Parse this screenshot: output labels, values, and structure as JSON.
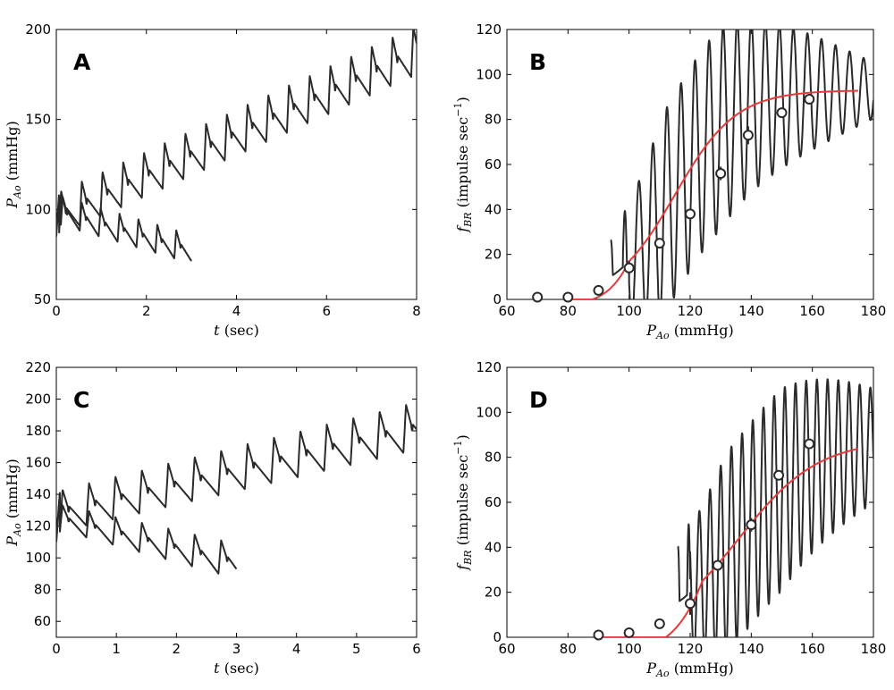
{
  "figure": {
    "stroke_color": "#2a2a2a",
    "fit_color": "#e83a3a",
    "marker_fill": "#ffffff"
  },
  "chart_data": [
    {
      "id": "A",
      "type": "line",
      "panel_label": "A",
      "xlim": [
        0,
        8
      ],
      "ylim": [
        50,
        200
      ],
      "xticks": [
        0,
        2,
        4,
        6,
        8
      ],
      "yticks": [
        50,
        100,
        150,
        200
      ],
      "xlabel": {
        "sym": "t",
        "unit": " (sec)"
      },
      "ylabel": {
        "sym": "P",
        "sub": "Ao",
        "unit": " (mmHg)"
      },
      "series": [
        {
          "name": "rising pressure",
          "type": "pulsatile",
          "t0": 0,
          "t1": 8,
          "period": 0.46,
          "base0": 85,
          "base1": 175,
          "amp0": 24,
          "amp1": 27,
          "firstBase": 85,
          "firstAmp": 24,
          "phase": 0.06
        },
        {
          "name": "falling pressure",
          "type": "pulsatile",
          "t0": 0,
          "t1": 3,
          "period": 0.42,
          "base0": 92,
          "base1": 70,
          "amp0": 16,
          "amp1": 16,
          "firstBase": 92,
          "firstAmp": 16,
          "phase": 0.1
        }
      ]
    },
    {
      "id": "B",
      "type": "line",
      "panel_label": "B",
      "xlim": [
        60,
        180
      ],
      "ylim": [
        0,
        120
      ],
      "xticks": [
        60,
        80,
        100,
        120,
        140,
        160,
        180
      ],
      "yticks": [
        0,
        20,
        40,
        60,
        80,
        100,
        120
      ],
      "xlabel": {
        "sym": "P",
        "sub": "Ao",
        "unit": " (mmHg)"
      },
      "ylabel": {
        "sym": "f",
        "sub": "BR",
        "unit": " (impulse sec",
        "sup": "−1",
        "close": ")"
      },
      "series": [
        {
          "name": "firing rate",
          "type": "firing",
          "x0": 94,
          "x1": 180,
          "period": 4.6,
          "threshold": 100
        },
        {
          "name": "sigmoid fit",
          "type": "fit",
          "x0": 80,
          "x1": 175,
          "max": 93,
          "mid": 115,
          "slope": 10,
          "onset": 88
        },
        {
          "name": "data points",
          "type": "markers",
          "x": [
            70,
            80,
            90,
            100,
            110,
            120,
            130,
            139,
            150,
            159
          ],
          "y": [
            1,
            1,
            4,
            14,
            25,
            38,
            56,
            73,
            83,
            89
          ],
          "err": [
            0,
            0,
            0,
            3,
            0,
            2,
            3,
            4,
            0,
            0
          ]
        }
      ]
    },
    {
      "id": "C",
      "type": "line",
      "panel_label": "C",
      "xlim": [
        0,
        6
      ],
      "ylim": [
        50,
        220
      ],
      "xticks": [
        0,
        1,
        2,
        3,
        4,
        5,
        6
      ],
      "yticks": [
        60,
        80,
        100,
        120,
        140,
        160,
        180,
        200,
        220
      ],
      "xlabel": {
        "sym": "t",
        "unit": " (sec)"
      },
      "ylabel": {
        "sym": "P",
        "sub": "Ao",
        "unit": " (mmHg)"
      },
      "series": [
        {
          "name": "rising pressure",
          "type": "pulsatile",
          "t0": 0,
          "t1": 6,
          "period": 0.44,
          "base0": 116,
          "base1": 168,
          "amp0": 26,
          "amp1": 30,
          "firstBase": 110,
          "firstAmp": 32,
          "phase": 0.06
        },
        {
          "name": "falling pressure",
          "type": "pulsatile",
          "t0": 0,
          "t1": 3,
          "period": 0.44,
          "base0": 118,
          "base1": 87,
          "amp0": 16,
          "amp1": 22,
          "firstBase": 112,
          "firstAmp": 30,
          "phase": 0.06
        }
      ]
    },
    {
      "id": "D",
      "type": "line",
      "panel_label": "D",
      "xlim": [
        60,
        180
      ],
      "ylim": [
        0,
        120
      ],
      "xticks": [
        60,
        80,
        100,
        120,
        140,
        160,
        180
      ],
      "yticks": [
        0,
        20,
        40,
        60,
        80,
        100,
        120
      ],
      "xlabel": {
        "sym": "P",
        "sub": "Ao",
        "unit": " (mmHg)"
      },
      "ylabel": {
        "sym": "f",
        "sub": "BR",
        "unit": " (impulse sec",
        "sup": "−1",
        "close": ")"
      },
      "series": [
        {
          "name": "firing rate",
          "type": "firing",
          "x0": 116,
          "x1": 180,
          "period": 3.5,
          "threshold": 120
        },
        {
          "name": "sigmoid fit",
          "type": "fit",
          "x0": 90,
          "x1": 175,
          "max": 88,
          "mid": 136,
          "slope": 13,
          "onset": 112
        },
        {
          "name": "data points",
          "type": "markers",
          "x": [
            90,
            100,
            110,
            120,
            129,
            140,
            149,
            159
          ],
          "y": [
            1,
            2,
            6,
            15,
            32,
            50,
            72,
            86
          ],
          "err": [
            0,
            0,
            0,
            5,
            0,
            3,
            0,
            0
          ]
        }
      ]
    }
  ]
}
